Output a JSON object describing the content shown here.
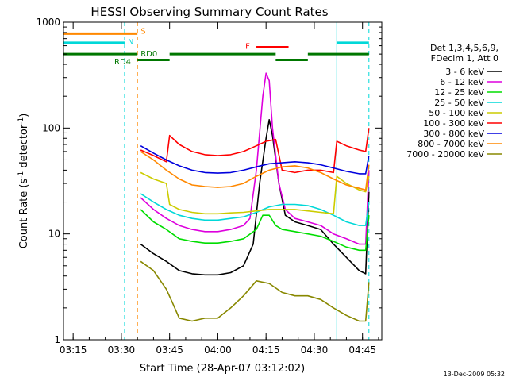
{
  "chart_data": {
    "type": "line",
    "title": "HESSI Observing Summary Count Rates",
    "xlabel": "Start Time (28-Apr-07 03:12:02)",
    "ylabel_main": "Count Rate (s",
    "ylabel_sup1": "-1",
    "ylabel_mid": " detector",
    "ylabel_sup2": "-1",
    "ylabel_end": ")",
    "yscale": "log",
    "ylim": [
      1,
      1000
    ],
    "xlim_minutes": [
      0,
      99
    ],
    "x_ticks": [
      {
        "label": "03:15",
        "m": 3
      },
      {
        "label": "03:30",
        "m": 18
      },
      {
        "label": "03:45",
        "m": 33
      },
      {
        "label": "04:00",
        "m": 48
      },
      {
        "label": "04:15",
        "m": 63
      },
      {
        "label": "04:30",
        "m": 78
      },
      {
        "label": "04:45",
        "m": 93
      }
    ],
    "y_ticks": [
      {
        "label": "1",
        "v": 1
      },
      {
        "label": "10",
        "v": 10
      },
      {
        "label": "100",
        "v": 100
      },
      {
        "label": "1000",
        "v": 1000
      }
    ],
    "legend_header": [
      "Det 1,3,4,5,6,9,",
      "FDecim 1, Att 0"
    ],
    "series": [
      {
        "name": "3 - 6 keV",
        "color": "#000000",
        "points": [
          [
            24,
            8
          ],
          [
            28,
            6.5
          ],
          [
            32,
            5.5
          ],
          [
            36,
            4.5
          ],
          [
            40,
            4.2
          ],
          [
            44,
            4.1
          ],
          [
            48,
            4.1
          ],
          [
            52,
            4.3
          ],
          [
            56,
            5
          ],
          [
            59,
            8
          ],
          [
            61,
            30
          ],
          [
            63,
            80
          ],
          [
            64,
            120
          ],
          [
            65,
            85
          ],
          [
            67,
            30
          ],
          [
            69,
            15
          ],
          [
            72,
            13
          ],
          [
            76,
            12
          ],
          [
            80,
            11
          ],
          [
            84,
            8
          ],
          [
            88,
            6
          ],
          [
            92,
            4.5
          ],
          [
            94,
            4.2
          ],
          [
            95,
            25
          ]
        ]
      },
      {
        "name": "6 - 12 keV",
        "color": "#dd00dd",
        "points": [
          [
            24,
            22
          ],
          [
            28,
            17
          ],
          [
            32,
            14
          ],
          [
            36,
            12
          ],
          [
            40,
            11
          ],
          [
            44,
            10.5
          ],
          [
            48,
            10.5
          ],
          [
            52,
            11
          ],
          [
            56,
            12
          ],
          [
            58,
            14
          ],
          [
            60,
            40
          ],
          [
            62,
            200
          ],
          [
            63,
            330
          ],
          [
            64,
            280
          ],
          [
            65,
            100
          ],
          [
            67,
            30
          ],
          [
            69,
            17
          ],
          [
            72,
            14
          ],
          [
            76,
            13
          ],
          [
            80,
            12
          ],
          [
            84,
            10
          ],
          [
            88,
            9
          ],
          [
            92,
            8
          ],
          [
            94,
            8
          ],
          [
            95,
            40
          ]
        ]
      },
      {
        "name": "12 - 25 keV",
        "color": "#00dd00",
        "points": [
          [
            24,
            17
          ],
          [
            28,
            13
          ],
          [
            32,
            11
          ],
          [
            36,
            9
          ],
          [
            40,
            8.5
          ],
          [
            44,
            8.2
          ],
          [
            48,
            8.2
          ],
          [
            52,
            8.5
          ],
          [
            56,
            9
          ],
          [
            60,
            11
          ],
          [
            62,
            15
          ],
          [
            64,
            15
          ],
          [
            66,
            12
          ],
          [
            68,
            11
          ],
          [
            72,
            10.5
          ],
          [
            76,
            10
          ],
          [
            80,
            9.5
          ],
          [
            84,
            8.5
          ],
          [
            88,
            7.5
          ],
          [
            92,
            7
          ],
          [
            94,
            7
          ],
          [
            95,
            15
          ]
        ]
      },
      {
        "name": "25 - 50 keV",
        "color": "#00d8d8",
        "points": [
          [
            24,
            24
          ],
          [
            28,
            20
          ],
          [
            32,
            17
          ],
          [
            36,
            15
          ],
          [
            40,
            14
          ],
          [
            44,
            13.5
          ],
          [
            48,
            13.5
          ],
          [
            52,
            14
          ],
          [
            56,
            14.5
          ],
          [
            60,
            16
          ],
          [
            64,
            18
          ],
          [
            68,
            19
          ],
          [
            72,
            19
          ],
          [
            76,
            18.5
          ],
          [
            80,
            17
          ],
          [
            84,
            15
          ],
          [
            88,
            13
          ],
          [
            92,
            12
          ],
          [
            94,
            12
          ],
          [
            95,
            20
          ]
        ]
      },
      {
        "name": "50 - 100 keV",
        "color": "#cccc00",
        "points": [
          [
            24,
            38
          ],
          [
            28,
            33
          ],
          [
            32,
            30
          ],
          [
            33,
            19
          ],
          [
            36,
            17
          ],
          [
            40,
            16
          ],
          [
            44,
            15.5
          ],
          [
            48,
            15.5
          ],
          [
            52,
            15.8
          ],
          [
            56,
            16
          ],
          [
            60,
            16.5
          ],
          [
            64,
            17
          ],
          [
            68,
            17
          ],
          [
            72,
            17
          ],
          [
            76,
            16.5
          ],
          [
            80,
            16
          ],
          [
            84,
            15.5
          ],
          [
            85,
            35
          ],
          [
            88,
            30
          ],
          [
            92,
            26
          ],
          [
            94,
            25
          ],
          [
            95,
            35
          ]
        ]
      },
      {
        "name": "100 - 300 keV",
        "color": "#ff0000",
        "points": [
          [
            24,
            62
          ],
          [
            28,
            55
          ],
          [
            32,
            48
          ],
          [
            33,
            85
          ],
          [
            36,
            70
          ],
          [
            40,
            60
          ],
          [
            44,
            56
          ],
          [
            48,
            55
          ],
          [
            52,
            56
          ],
          [
            56,
            60
          ],
          [
            60,
            68
          ],
          [
            63,
            75
          ],
          [
            66,
            78
          ],
          [
            68,
            40
          ],
          [
            72,
            38
          ],
          [
            76,
            40
          ],
          [
            80,
            40
          ],
          [
            84,
            38
          ],
          [
            85,
            75
          ],
          [
            88,
            68
          ],
          [
            92,
            62
          ],
          [
            94,
            60
          ],
          [
            95,
            100
          ]
        ]
      },
      {
        "name": "300 - 800 keV",
        "color": "#0000dd",
        "points": [
          [
            24,
            68
          ],
          [
            28,
            58
          ],
          [
            32,
            50
          ],
          [
            36,
            44
          ],
          [
            40,
            40
          ],
          [
            44,
            38
          ],
          [
            48,
            37.5
          ],
          [
            52,
            38
          ],
          [
            56,
            40
          ],
          [
            60,
            43
          ],
          [
            64,
            46
          ],
          [
            68,
            47
          ],
          [
            72,
            48
          ],
          [
            76,
            47
          ],
          [
            80,
            45
          ],
          [
            84,
            42
          ],
          [
            88,
            39
          ],
          [
            92,
            37
          ],
          [
            94,
            37
          ],
          [
            95,
            55
          ]
        ]
      },
      {
        "name": "800 - 7000 keV",
        "color": "#ff8800",
        "points": [
          [
            24,
            60
          ],
          [
            28,
            50
          ],
          [
            32,
            40
          ],
          [
            36,
            33
          ],
          [
            40,
            29
          ],
          [
            44,
            28
          ],
          [
            48,
            27.5
          ],
          [
            52,
            28
          ],
          [
            56,
            30
          ],
          [
            60,
            35
          ],
          [
            64,
            40
          ],
          [
            68,
            43
          ],
          [
            72,
            44
          ],
          [
            76,
            42
          ],
          [
            80,
            38
          ],
          [
            84,
            33
          ],
          [
            88,
            29
          ],
          [
            92,
            27
          ],
          [
            94,
            26
          ],
          [
            95,
            45
          ]
        ]
      },
      {
        "name": "7000 - 20000 keV",
        "color": "#888800",
        "points": [
          [
            24,
            5.5
          ],
          [
            28,
            4.5
          ],
          [
            32,
            3
          ],
          [
            34,
            2.2
          ],
          [
            36,
            1.6
          ],
          [
            40,
            1.5
          ],
          [
            44,
            1.6
          ],
          [
            48,
            1.6
          ],
          [
            52,
            2
          ],
          [
            56,
            2.6
          ],
          [
            60,
            3.6
          ],
          [
            64,
            3.4
          ],
          [
            68,
            2.8
          ],
          [
            72,
            2.6
          ],
          [
            76,
            2.6
          ],
          [
            80,
            2.4
          ],
          [
            84,
            2
          ],
          [
            88,
            1.7
          ],
          [
            92,
            1.5
          ],
          [
            94,
            1.5
          ],
          [
            95,
            3.5
          ]
        ]
      }
    ],
    "flag_labels": [
      "S",
      "N",
      "F",
      "RD0",
      "RD4"
    ],
    "flags": [
      {
        "label": "S",
        "color": "#ff8800",
        "y": 780,
        "segments": [
          [
            0,
            23
          ]
        ]
      },
      {
        "label": "N",
        "color": "#00d8d8",
        "y": 640,
        "segments": [
          [
            0,
            19
          ],
          [
            85,
            95
          ]
        ]
      },
      {
        "label": "F",
        "color": "#ff0000",
        "y": 580,
        "segments": [
          [
            60,
            70
          ]
        ]
      },
      {
        "label": "RD0",
        "color": "#007700",
        "y": 500,
        "segments": [
          [
            0,
            23
          ],
          [
            33,
            66
          ],
          [
            76,
            95
          ]
        ]
      },
      {
        "label": "RD4",
        "color": "#007700",
        "y": 440,
        "segments": [
          [
            23,
            33
          ],
          [
            66,
            76
          ]
        ]
      }
    ],
    "vlines": [
      {
        "m": 19,
        "color": "#00d8d8",
        "dash": true
      },
      {
        "m": 23,
        "color": "#ff8800",
        "dash": true
      },
      {
        "m": 85,
        "color": "#00d8d8",
        "dash": false
      },
      {
        "m": 95,
        "color": "#00d8d8",
        "dash": true
      },
      {
        "m": 0,
        "color": "#00d8d8",
        "dash": false
      }
    ],
    "legend_position": "right",
    "grid": false
  },
  "footer_date": "13-Dec-2009 05:32"
}
